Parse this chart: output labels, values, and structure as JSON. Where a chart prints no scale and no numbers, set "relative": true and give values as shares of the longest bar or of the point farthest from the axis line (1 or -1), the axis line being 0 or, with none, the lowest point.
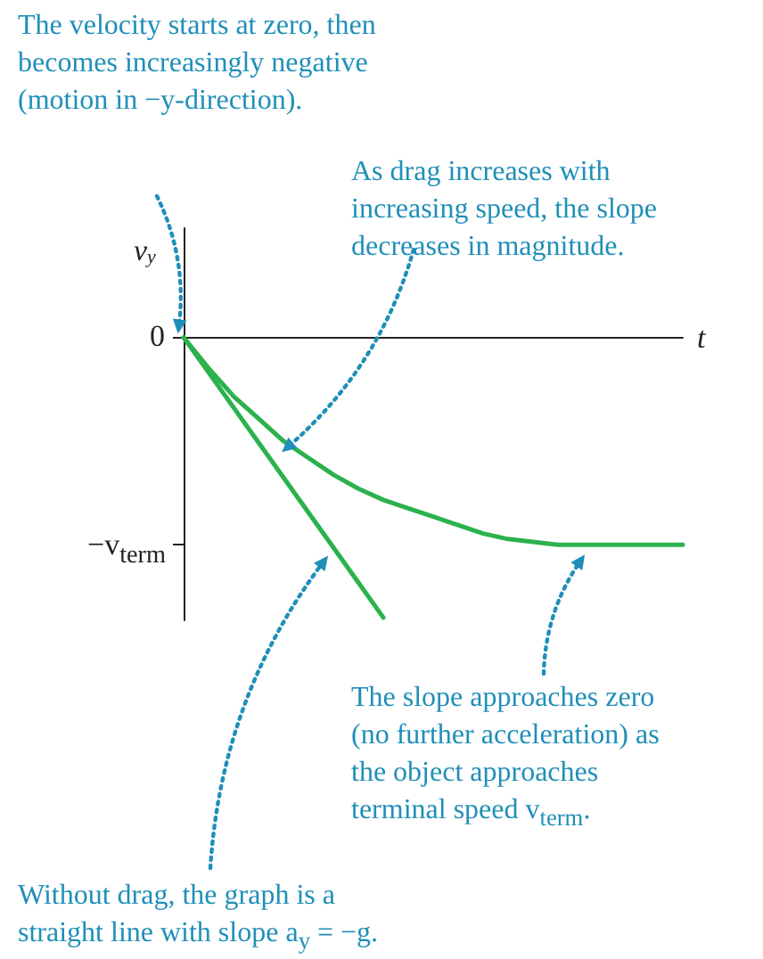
{
  "chart_data": {
    "type": "line",
    "xlabel": "t",
    "ylabel": "v$_{y}$",
    "relative": true,
    "categories": [
      null,
      null,
      null,
      null,
      null,
      null,
      null,
      null,
      null,
      null,
      null,
      null,
      null,
      null,
      null,
      null,
      null,
      null,
      null,
      null,
      null
    ],
    "grid": false,
    "marker": "none",
    "line_style": "solid",
    "series": [
      {
        "color": "#2bb24c",
        "values": [
          0,
          -0.11,
          -0.21,
          -0.29,
          -0.37,
          -0.43,
          -0.49,
          -0.54,
          -0.58,
          -0.61,
          -0.64,
          -0.67,
          -0.7,
          -0.72,
          -0.73,
          -0.74,
          -0.74,
          -0.74,
          -0.74,
          -0.74,
          -0.74
        ]
      },
      {
        "color": "#2bb24c",
        "values": [
          0,
          -0.125,
          -0.25,
          -0.375,
          -0.5,
          -0.625,
          -0.75,
          -0.875,
          -1,
          null,
          null,
          null,
          null,
          null,
          null,
          null,
          null,
          null,
          null,
          null,
          null
        ]
      }
    ],
    "annotations": [
      "The velocity starts at zero, then\nbecomes increasingly negative\n(motion in −y-direction).",
      "As drag increases with\nincreasing speed, the slope\ndecreases in magnitude.",
      "The slope approaches zero\n(no further acceleration) as\nthe object approaches\nterminal speed v$_{term}$.",
      "Without drag, the graph is a\nstraight line with slope a$_{y}$ = −g.",
      "0",
      "−v$_{term}$"
    ]
  }
}
